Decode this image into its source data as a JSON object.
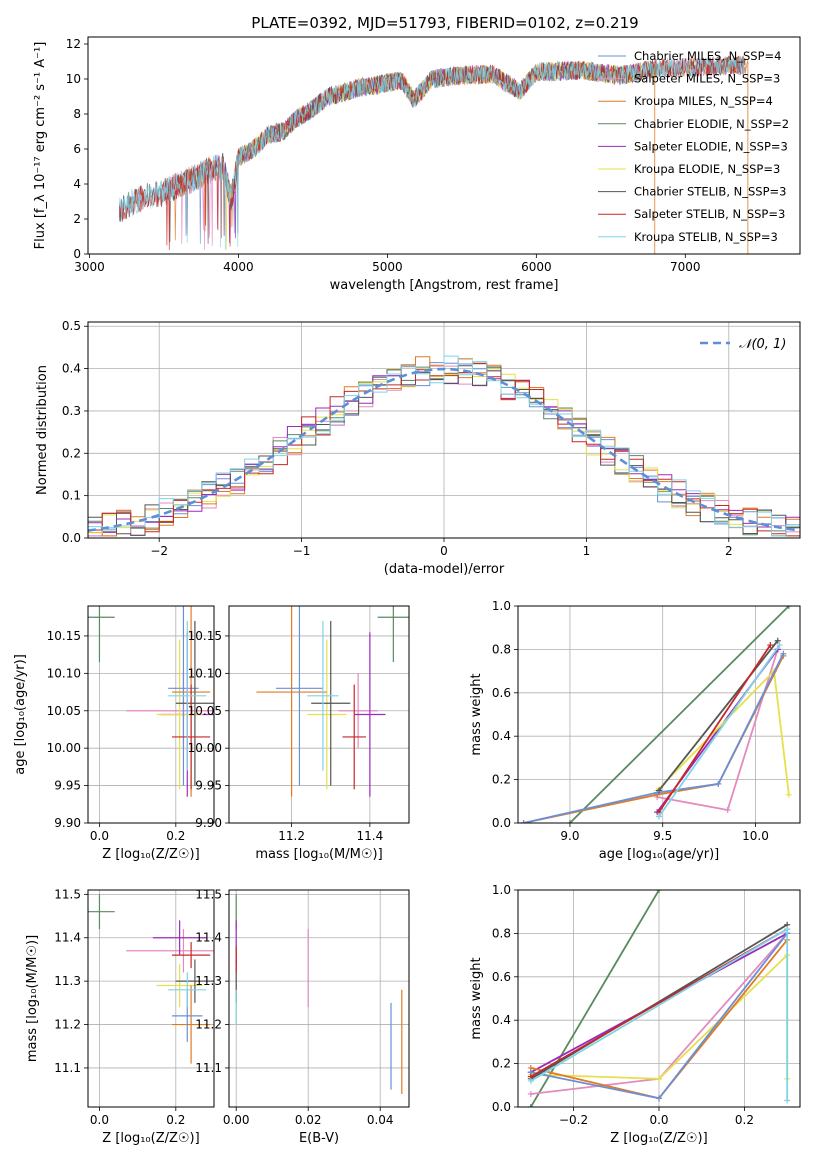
{
  "title": "PLATE=0392, MJD=51793, FIBERID=0102, z=0.219",
  "chart_data": [
    {
      "type": "line",
      "panel": "spectrum",
      "xlabel": "wavelength [Angstrom, rest frame]",
      "ylabel": "Flux [f_λ 10⁻¹⁷ erg cm⁻² s⁻¹ A⁻¹]",
      "xlim": [
        2990,
        7770
      ],
      "ylim": [
        0,
        12.4
      ],
      "xticks": [
        "3000",
        "4000",
        "5000",
        "6000",
        "7000"
      ],
      "yticks": [
        "0",
        "2",
        "4",
        "6",
        "8",
        "10",
        "12"
      ],
      "legend_position": "top-right",
      "grid": false,
      "series": [
        {
          "name": "Chabrier MILES, N_SSP=4",
          "color": "#6a8fd8",
          "x": [
            3500,
            7400
          ]
        },
        {
          "name": "Salpeter MILES, N_SSP=3",
          "color": "#e48abf",
          "x": [
            3500,
            7400
          ]
        },
        {
          "name": "Kroupa MILES, N_SSP=4",
          "color": "#e07b23",
          "x": [
            3520,
            7420
          ]
        },
        {
          "name": "Chabrier ELODIE, N_SSP=2",
          "color": "#5a8a60",
          "x": [
            3900,
            6800
          ]
        },
        {
          "name": "Salpeter ELODIE, N_SSP=3",
          "color": "#9b2bbd",
          "x": [
            3900,
            6800
          ]
        },
        {
          "name": "Kroupa ELODIE, N_SSP=3",
          "color": "#e6e04a",
          "x": [
            3900,
            6800
          ]
        },
        {
          "name": "Chabrier STELIB, N_SSP=3",
          "color": "#555555",
          "x": [
            3200,
            7400
          ]
        },
        {
          "name": "Salpeter STELIB, N_SSP=3",
          "color": "#c62828",
          "x": [
            3200,
            7400
          ]
        },
        {
          "name": "Kroupa STELIB, N_SSP=3",
          "color": "#7fd3e6",
          "x": [
            3200,
            7400
          ]
        }
      ],
      "shape": [
        [
          3200,
          2.5
        ],
        [
          3300,
          3.0
        ],
        [
          3400,
          3.3
        ],
        [
          3500,
          3.5
        ],
        [
          3600,
          4.0
        ],
        [
          3700,
          4.3
        ],
        [
          3800,
          4.8
        ],
        [
          3900,
          5.0
        ],
        [
          3950,
          3.0
        ],
        [
          4000,
          5.5
        ],
        [
          4100,
          6.0
        ],
        [
          4200,
          6.8
        ],
        [
          4300,
          7.0
        ],
        [
          4400,
          7.8
        ],
        [
          4500,
          8.3
        ],
        [
          4600,
          9.0
        ],
        [
          4700,
          9.2
        ],
        [
          4800,
          9.5
        ],
        [
          4900,
          9.6
        ],
        [
          5000,
          9.8
        ],
        [
          5100,
          9.9
        ],
        [
          5175,
          8.8
        ],
        [
          5300,
          10.0
        ],
        [
          5500,
          10.2
        ],
        [
          5700,
          10.3
        ],
        [
          5890,
          9.3
        ],
        [
          6000,
          10.4
        ],
        [
          6300,
          10.5
        ],
        [
          6563,
          10.2
        ],
        [
          6800,
          10.6
        ],
        [
          7100,
          10.7
        ],
        [
          7400,
          10.8
        ]
      ]
    },
    {
      "type": "bar",
      "panel": "residual-histogram",
      "xlabel": "(data-model)/error",
      "ylabel": "Normed distribution",
      "xlim": [
        -2.5,
        2.5
      ],
      "ylim": [
        0,
        0.51
      ],
      "xticks": [
        "−2",
        "−1",
        "0",
        "1",
        "2"
      ],
      "yticks": [
        "0.0",
        "0.1",
        "0.2",
        "0.3",
        "0.4",
        "0.5"
      ],
      "grid": true,
      "legend": "𝒩(0, 1)",
      "legend_position": "top-right",
      "bin_width": 0.1,
      "curve": "normal(0,1)"
    },
    {
      "type": "scatter",
      "panel": "age-vs-Z",
      "xlabel": "Z [log₁₀(Z/Z☉)]",
      "ylabel": "age  [log₁₀(age/yr)]",
      "xlim": [
        -0.03,
        0.3
      ],
      "ylim": [
        9.9,
        10.19
      ],
      "xticks": [
        "0.0",
        "0.2"
      ],
      "yticks": [
        "9.90",
        "9.95",
        "10.00",
        "10.05",
        "10.10",
        "10.15"
      ],
      "grid": true,
      "points": [
        {
          "x": 0.0,
          "y": 10.175,
          "xerr": 0.04,
          "yerr": 0.06,
          "color": "#5a8a60"
        },
        {
          "x": 0.22,
          "y": 10.05,
          "xerr": 0.15,
          "yerr": 0.05,
          "color": "#e48abf"
        },
        {
          "x": 0.23,
          "y": 10.045,
          "xerr": 0.07,
          "yerr": 0.11,
          "color": "#9b2bbd"
        },
        {
          "x": 0.21,
          "y": 10.045,
          "xerr": 0.06,
          "yerr": 0.1,
          "color": "#e6e04a"
        },
        {
          "x": 0.24,
          "y": 10.075,
          "xerr": 0.05,
          "yerr": 0.14,
          "color": "#e07b23"
        },
        {
          "x": 0.22,
          "y": 10.08,
          "xerr": 0.04,
          "yerr": 0.13,
          "color": "#6a8fd8"
        },
        {
          "x": 0.25,
          "y": 10.06,
          "xerr": 0.05,
          "yerr": 0.11,
          "color": "#555555"
        },
        {
          "x": 0.24,
          "y": 10.015,
          "xerr": 0.05,
          "yerr": 0.07,
          "color": "#c62828"
        },
        {
          "x": 0.23,
          "y": 10.07,
          "xerr": 0.05,
          "yerr": 0.1,
          "color": "#7fd3e6"
        }
      ]
    },
    {
      "type": "scatter",
      "panel": "age-vs-mass",
      "xlabel": "mass [log₁₀(M/M☉)]",
      "ylabel": "",
      "xlim": [
        11.04,
        11.5
      ],
      "ylim": [
        9.9,
        10.19
      ],
      "xticks": [
        "11.2",
        "11.4"
      ],
      "yticks": [
        "9.90",
        "9.95",
        "10.00",
        "10.05",
        "10.10",
        "10.15"
      ],
      "grid": true,
      "points": [
        {
          "x": 11.46,
          "y": 10.175,
          "xerr": 0.04,
          "yerr": 0.06,
          "color": "#5a8a60"
        },
        {
          "x": 11.37,
          "y": 10.05,
          "xerr": 0.05,
          "yerr": 0.05,
          "color": "#e48abf"
        },
        {
          "x": 11.4,
          "y": 10.045,
          "xerr": 0.04,
          "yerr": 0.11,
          "color": "#9b2bbd"
        },
        {
          "x": 11.29,
          "y": 10.045,
          "xerr": 0.05,
          "yerr": 0.1,
          "color": "#e6e04a"
        },
        {
          "x": 11.2,
          "y": 10.075,
          "xerr": 0.09,
          "yerr": 0.14,
          "color": "#e07b23"
        },
        {
          "x": 11.22,
          "y": 10.08,
          "xerr": 0.06,
          "yerr": 0.13,
          "color": "#6a8fd8"
        },
        {
          "x": 11.3,
          "y": 10.06,
          "xerr": 0.05,
          "yerr": 0.11,
          "color": "#555555"
        },
        {
          "x": 11.36,
          "y": 10.015,
          "xerr": 0.03,
          "yerr": 0.07,
          "color": "#c62828"
        },
        {
          "x": 11.28,
          "y": 10.07,
          "xerr": 0.04,
          "yerr": 0.1,
          "color": "#7fd3e6"
        }
      ]
    },
    {
      "type": "line",
      "panel": "mass-weight-vs-age",
      "xlabel": "age  [log₁₀(age/yr)]",
      "ylabel": "mass weight",
      "xlim": [
        8.72,
        10.24
      ],
      "ylim": [
        0,
        1.0
      ],
      "xticks": [
        "9.0",
        "9.5",
        "10.0"
      ],
      "yticks": [
        "0.0",
        "0.2",
        "0.4",
        "0.6",
        "0.8",
        "1.0"
      ],
      "grid": true,
      "series": [
        {
          "color": "#5a8a60",
          "x": [
            9.0,
            10.18
          ],
          "y": [
            0.0,
            1.0
          ]
        },
        {
          "color": "#e48abf",
          "x": [
            9.47,
            9.85,
            10.12
          ],
          "y": [
            0.12,
            0.06,
            0.8
          ]
        },
        {
          "color": "#9b2bbd",
          "x": [
            9.47,
            10.12
          ],
          "y": [
            0.05,
            0.8
          ]
        },
        {
          "color": "#e6e04a",
          "x": [
            9.47,
            10.1,
            10.18
          ],
          "y": [
            0.15,
            0.7,
            0.13
          ]
        },
        {
          "color": "#e07b23",
          "x": [
            8.75,
            9.47,
            9.8,
            10.15
          ],
          "y": [
            0.0,
            0.13,
            0.18,
            0.77
          ]
        },
        {
          "color": "#6a8fd8",
          "x": [
            8.75,
            9.47,
            9.8,
            10.15
          ],
          "y": [
            0.0,
            0.14,
            0.18,
            0.78
          ]
        },
        {
          "color": "#555555",
          "x": [
            9.48,
            10.12
          ],
          "y": [
            0.15,
            0.84
          ]
        },
        {
          "color": "#c62828",
          "x": [
            9.48,
            10.08
          ],
          "y": [
            0.05,
            0.82
          ]
        },
        {
          "color": "#7fd3e6",
          "x": [
            9.48,
            10.13
          ],
          "y": [
            0.03,
            0.82
          ]
        }
      ]
    },
    {
      "type": "scatter",
      "panel": "mass-vs-Z",
      "xlabel": "Z [log₁₀(Z/Z☉)]",
      "ylabel": "mass [log₁₀(M/M☉)]",
      "xlim": [
        -0.03,
        0.3
      ],
      "ylim": [
        11.01,
        11.51
      ],
      "xticks": [
        "0.0",
        "0.2"
      ],
      "yticks": [
        "11.1",
        "11.2",
        "11.3",
        "11.4",
        "11.5"
      ],
      "grid": true,
      "points": [
        {
          "x": 0.0,
          "y": 11.46,
          "xerr": 0.04,
          "yerr": 0.04,
          "color": "#5a8a60"
        },
        {
          "x": 0.22,
          "y": 11.37,
          "xerr": 0.15,
          "yerr": 0.05,
          "color": "#e48abf"
        },
        {
          "x": 0.21,
          "y": 11.4,
          "xerr": 0.07,
          "yerr": 0.04,
          "color": "#9b2bbd"
        },
        {
          "x": 0.21,
          "y": 11.29,
          "xerr": 0.06,
          "yerr": 0.05,
          "color": "#e6e04a"
        },
        {
          "x": 0.24,
          "y": 11.2,
          "xerr": 0.05,
          "yerr": 0.09,
          "color": "#e07b23"
        },
        {
          "x": 0.23,
          "y": 11.22,
          "xerr": 0.04,
          "yerr": 0.06,
          "color": "#6a8fd8"
        },
        {
          "x": 0.25,
          "y": 11.3,
          "xerr": 0.05,
          "yerr": 0.05,
          "color": "#555555"
        },
        {
          "x": 0.24,
          "y": 11.36,
          "xerr": 0.05,
          "yerr": 0.03,
          "color": "#c62828"
        },
        {
          "x": 0.23,
          "y": 11.28,
          "xerr": 0.05,
          "yerr": 0.04,
          "color": "#7fd3e6"
        }
      ]
    },
    {
      "type": "scatter",
      "panel": "mass-vs-EBV",
      "xlabel": "E(B-V)",
      "ylabel": "",
      "xlim": [
        -0.002,
        0.048
      ],
      "ylim": [
        11.01,
        11.51
      ],
      "xticks": [
        "0.00",
        "0.02",
        "0.04"
      ],
      "yticks": [
        "11.1",
        "11.2",
        "11.3",
        "11.4",
        "11.5"
      ],
      "grid": true,
      "points": [
        {
          "x": 0.0,
          "y": 11.46,
          "yerr": 0.04,
          "color": "#5a8a60"
        },
        {
          "x": 0.02,
          "y": 11.33,
          "yerr": 0.09,
          "color": "#e48abf"
        },
        {
          "x": 0.0,
          "y": 11.39,
          "yerr": 0.05,
          "color": "#9b2bbd"
        },
        {
          "x": 0.0,
          "y": 11.25,
          "yerr": 0.05,
          "color": "#e6e04a"
        },
        {
          "x": 0.046,
          "y": 11.16,
          "yerr": 0.12,
          "color": "#e07b23"
        },
        {
          "x": 0.043,
          "y": 11.15,
          "yerr": 0.1,
          "color": "#6a8fd8"
        },
        {
          "x": 0.0,
          "y": 11.3,
          "yerr": 0.05,
          "color": "#555555"
        },
        {
          "x": 0.0,
          "y": 11.35,
          "yerr": 0.03,
          "color": "#c62828"
        },
        {
          "x": 0.0,
          "y": 11.24,
          "yerr": 0.04,
          "color": "#7fd3e6"
        }
      ]
    },
    {
      "type": "line",
      "panel": "mass-weight-vs-Z",
      "xlabel": "Z [log₁₀(Z/Z☉)]",
      "ylabel": "mass weight",
      "xlim": [
        -0.33,
        0.33
      ],
      "ylim": [
        0,
        1.0
      ],
      "xticks": [
        "−0.2",
        "0.0",
        "0.2"
      ],
      "yticks": [
        "0.0",
        "0.2",
        "0.4",
        "0.6",
        "0.8",
        "1.0"
      ],
      "grid": true,
      "series": [
        {
          "color": "#5a8a60",
          "x": [
            -0.3,
            0.0
          ],
          "y": [
            0.0,
            1.0
          ]
        },
        {
          "color": "#e48abf",
          "x": [
            -0.3,
            0.0,
            0.3
          ],
          "y": [
            0.06,
            0.13,
            0.8
          ]
        },
        {
          "color": "#9b2bbd",
          "x": [
            -0.3,
            0.3
          ],
          "y": [
            0.16,
            0.8
          ]
        },
        {
          "color": "#e6e04a",
          "x": [
            -0.3,
            0.0,
            0.3,
            0.3
          ],
          "y": [
            0.15,
            0.13,
            0.7,
            0.13
          ]
        },
        {
          "color": "#e07b23",
          "x": [
            -0.3,
            0.0,
            0.3
          ],
          "y": [
            0.18,
            0.04,
            0.77
          ]
        },
        {
          "color": "#6a8fd8",
          "x": [
            -0.3,
            0.0,
            0.3
          ],
          "y": [
            0.16,
            0.04,
            0.8
          ]
        },
        {
          "color": "#555555",
          "x": [
            -0.3,
            0.3
          ],
          "y": [
            0.13,
            0.84
          ]
        },
        {
          "color": "#c62828",
          "x": [
            -0.3,
            0.3
          ],
          "y": [
            0.14,
            0.82
          ]
        },
        {
          "color": "#7fd3e6",
          "x": [
            -0.3,
            0.3,
            0.3
          ],
          "y": [
            0.12,
            0.82,
            0.03
          ]
        }
      ]
    }
  ]
}
